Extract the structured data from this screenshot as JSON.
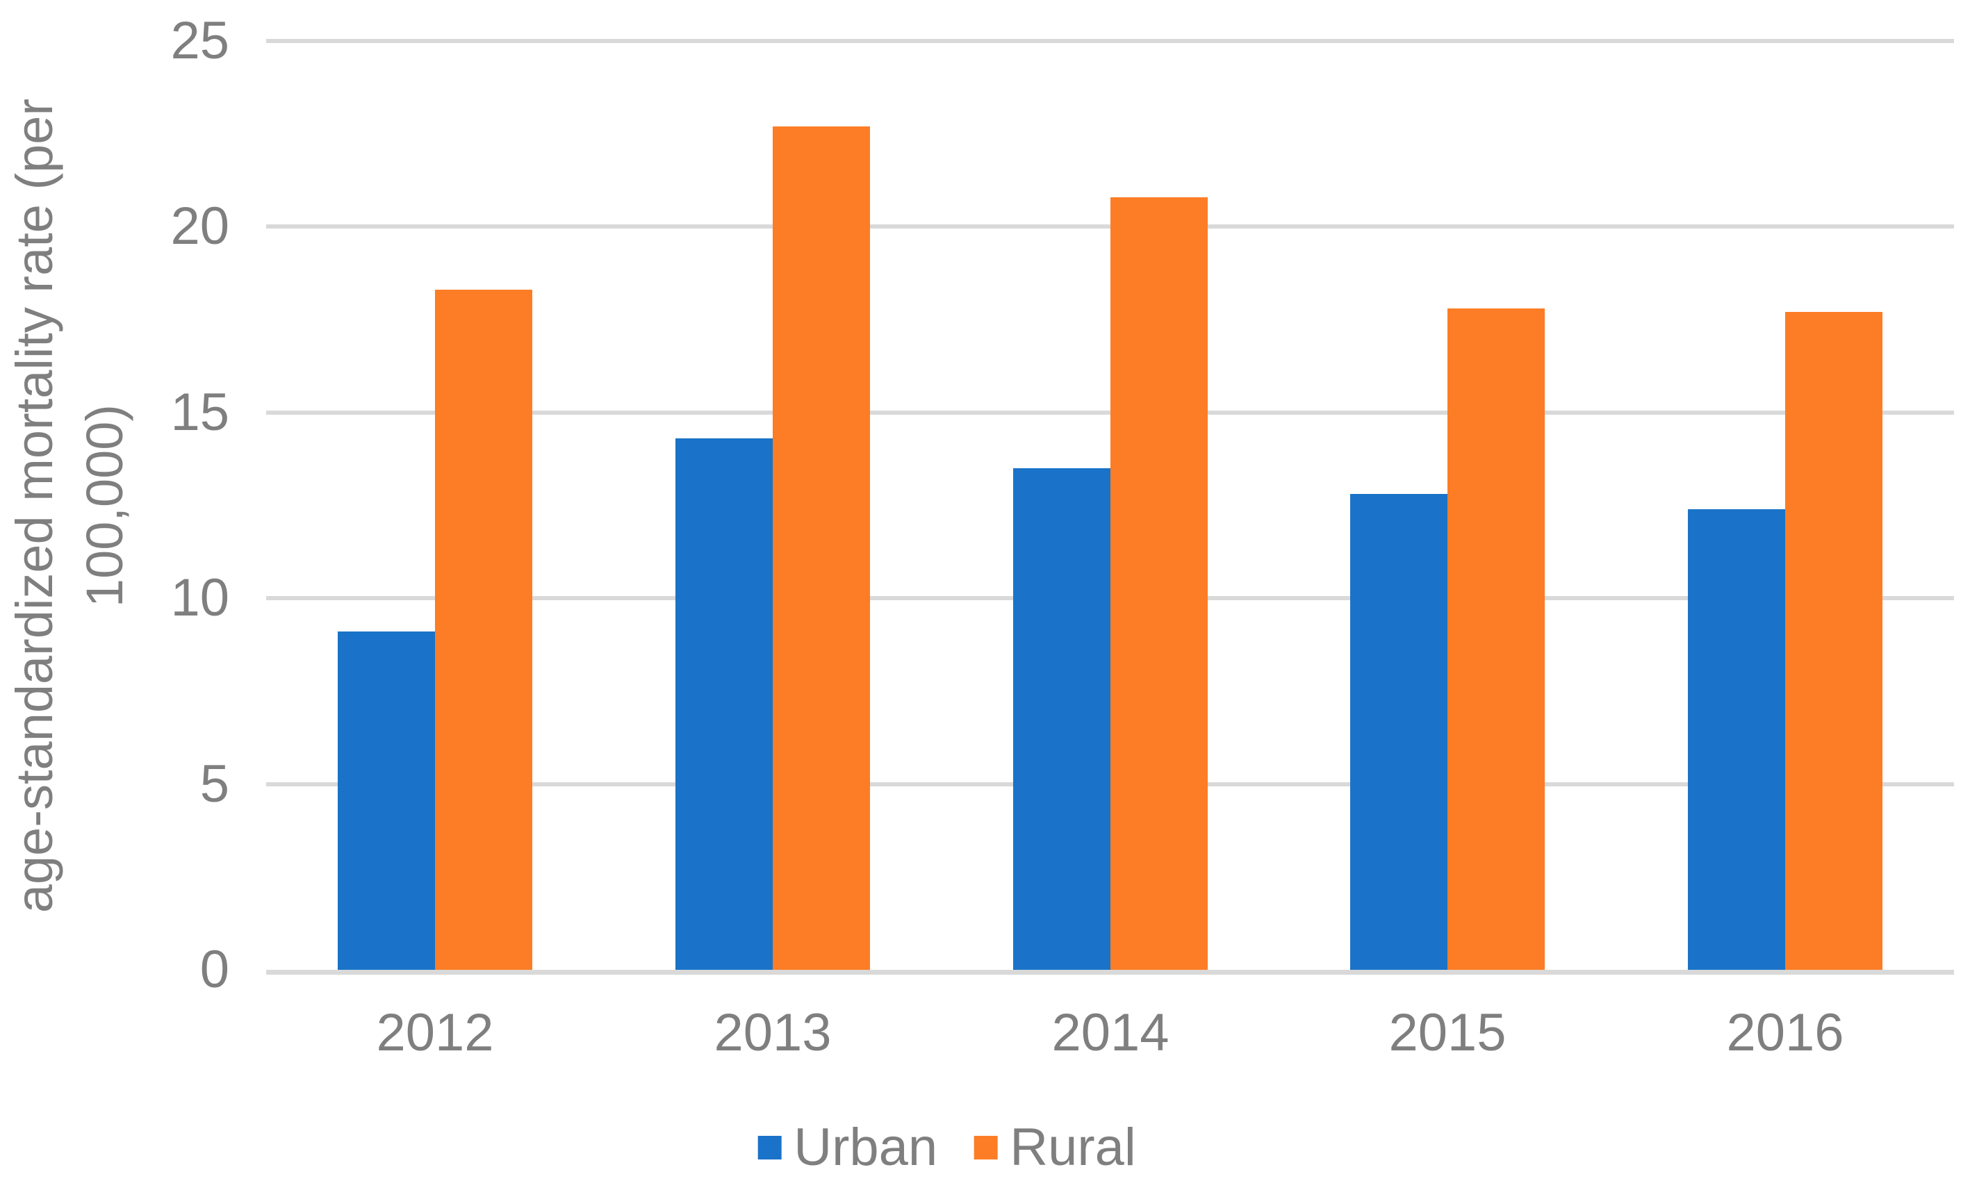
{
  "chart_data": {
    "type": "bar",
    "title": "",
    "categories": [
      "2012",
      "2013",
      "2014",
      "2015",
      "2016"
    ],
    "series": [
      {
        "name": "Urban",
        "color": "#1A73C8",
        "values": [
          9.1,
          14.3,
          13.5,
          12.8,
          12.4
        ]
      },
      {
        "name": "Rural",
        "color": "#FC7D25",
        "values": [
          18.3,
          22.7,
          20.8,
          17.8,
          17.7
        ]
      }
    ],
    "xlabel": "",
    "ylabel": "age-standardized mortality rate (per 100,000)",
    "ylabel_lines": {
      "line1": "age-standardized mortality rate  (per",
      "line2": "100,000)"
    },
    "ylim": [
      0,
      25
    ],
    "ytick_step": 5,
    "yticks": [
      "0",
      "5",
      "10",
      "15",
      "20",
      "25"
    ],
    "grid": true,
    "gridline_color": "#D9D9D9",
    "text_color": "#7F7F7F",
    "background_color": "#FFFFFF",
    "legend_position": "bottom",
    "legend": [
      {
        "label": "Urban",
        "swatch": "blue-square"
      },
      {
        "label": "Rural",
        "swatch": "orange-square"
      }
    ]
  }
}
